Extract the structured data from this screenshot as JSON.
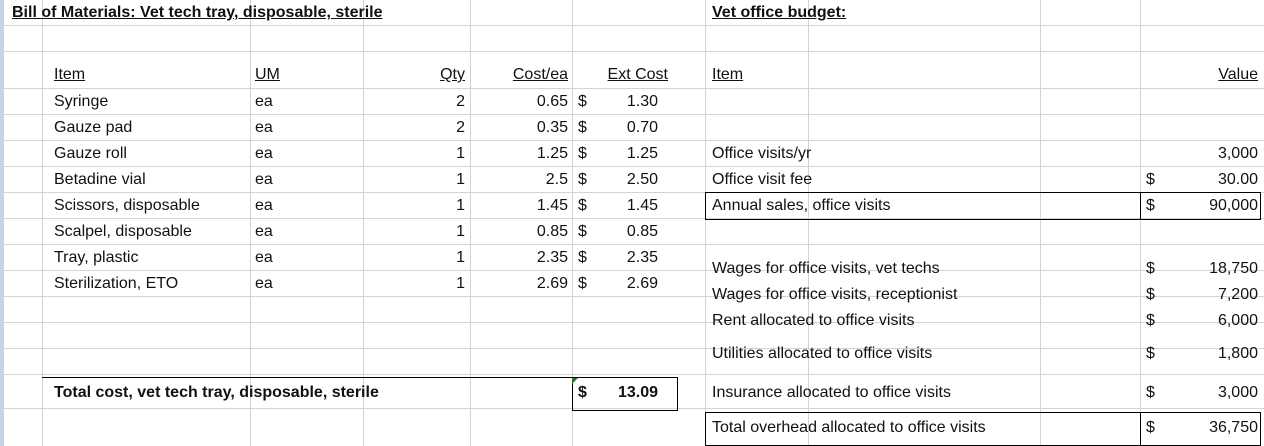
{
  "bom": {
    "title": "Bill of Materials: Vet tech tray, disposable, sterile",
    "headers": {
      "item": "Item",
      "um": "UM",
      "qty": "Qty",
      "cost": "Cost/ea",
      "ext": "Ext Cost"
    },
    "rows": [
      {
        "item": "Syringe",
        "um": "ea",
        "qty": "2",
        "cost": "0.65",
        "cur": "$",
        "ext": "1.30"
      },
      {
        "item": "Gauze pad",
        "um": "ea",
        "qty": "2",
        "cost": "0.35",
        "cur": "$",
        "ext": "0.70"
      },
      {
        "item": "Gauze roll",
        "um": "ea",
        "qty": "1",
        "cost": "1.25",
        "cur": "$",
        "ext": "1.25"
      },
      {
        "item": "Betadine vial",
        "um": "ea",
        "qty": "1",
        "cost": "2.5",
        "cur": "$",
        "ext": "2.50"
      },
      {
        "item": "Scissors, disposable",
        "um": "ea",
        "qty": "1",
        "cost": "1.45",
        "cur": "$",
        "ext": "1.45"
      },
      {
        "item": "Scalpel, disposable",
        "um": "ea",
        "qty": "1",
        "cost": "0.85",
        "cur": "$",
        "ext": "0.85"
      },
      {
        "item": "Tray, plastic",
        "um": "ea",
        "qty": "1",
        "cost": "2.35",
        "cur": "$",
        "ext": "2.35"
      },
      {
        "item": "Sterilization, ETO",
        "um": "ea",
        "qty": "1",
        "cost": "2.69",
        "cur": "$",
        "ext": "2.69"
      }
    ],
    "total_label": "Total cost, vet tech tray, disposable, sterile",
    "total_cur": "$",
    "total_value": "13.09"
  },
  "budget": {
    "title": "Vet office budget:",
    "headers": {
      "item": "Item",
      "value": "Value"
    },
    "rows": [
      {
        "label": "Office visits/yr",
        "cur": "",
        "value": "3,000"
      },
      {
        "label": "Office visit fee",
        "cur": "$",
        "value": "30.00"
      },
      {
        "label": "Annual sales, office visits",
        "cur": "$",
        "value": "90,000"
      },
      {
        "label": "Wages for office visits, vet techs",
        "cur": "$",
        "value": "18,750"
      },
      {
        "label": "Wages for office visits, receptionist",
        "cur": "$",
        "value": "7,200"
      },
      {
        "label": "Rent allocated to office visits",
        "cur": "$",
        "value": "6,000"
      },
      {
        "label": "Utilities allocated to office visits",
        "cur": "$",
        "value": "1,800"
      },
      {
        "label": "Insurance allocated to office visits",
        "cur": "$",
        "value": "3,000"
      },
      {
        "label": "Total overhead allocated to office visits",
        "cur": "$",
        "value": "36,750"
      }
    ]
  },
  "colors": {
    "gridline": "#d4d4d4",
    "frame": "#c7d3e6",
    "cell_marker": "#1e7b34"
  }
}
